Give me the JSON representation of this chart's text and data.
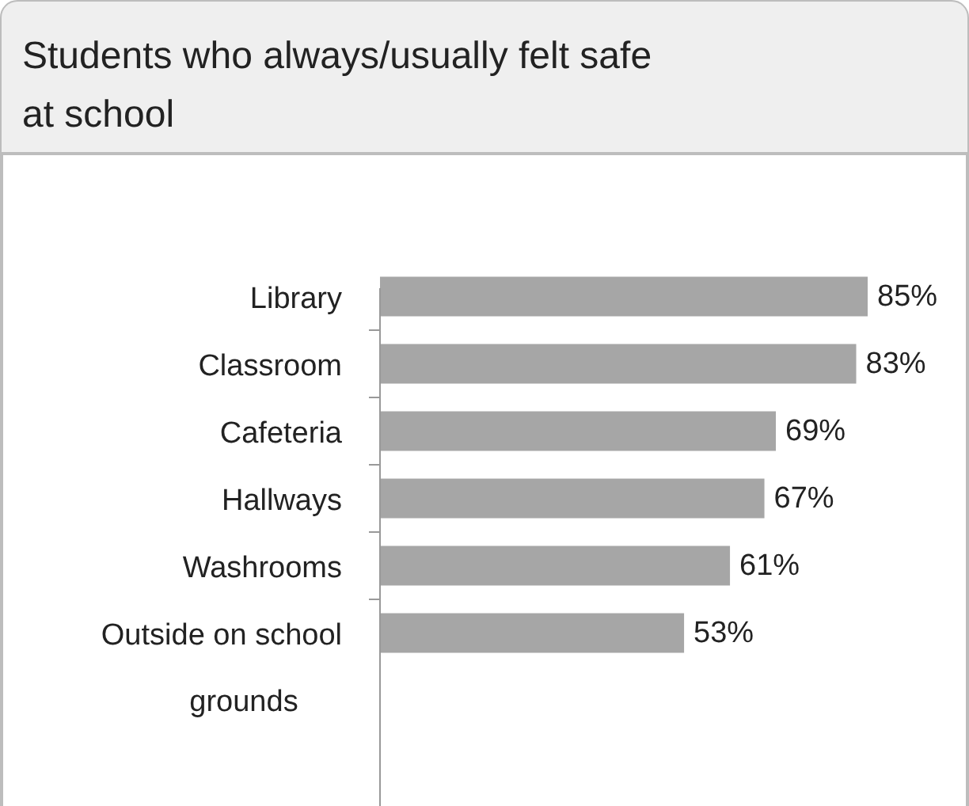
{
  "chart_data": {
    "type": "bar",
    "orientation": "horizontal",
    "title": "Students who always/usually felt safe at school",
    "categories": [
      "Library",
      "Classroom",
      "Cafeteria",
      "Hallways",
      "Washrooms",
      "Outside on school grounds"
    ],
    "values": [
      85,
      83,
      69,
      67,
      61,
      53
    ],
    "value_labels": [
      "85%",
      "83%",
      "69%",
      "67%",
      "61%",
      "53%"
    ],
    "color": "#a6a6a6"
  }
}
